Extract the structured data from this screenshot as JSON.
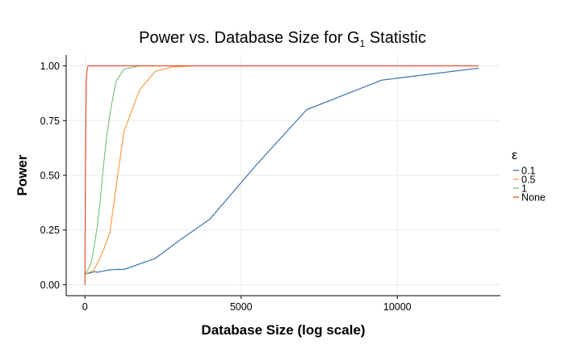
{
  "chart_data": {
    "type": "line",
    "title": {
      "prefix": "Power vs. Database Size for G",
      "subscript": "1",
      "suffix": " Statistic"
    },
    "xlabel": "Database Size (log scale)",
    "ylabel": "Power",
    "xlim": [
      -600,
      13300
    ],
    "ylim": [
      -0.05,
      1.05
    ],
    "x_ticks": [
      0,
      5000,
      10000
    ],
    "x_tick_labels": [
      "0",
      "5000",
      "10000"
    ],
    "y_ticks": [
      0,
      0.25,
      0.5,
      0.75,
      1.0
    ],
    "y_tick_labels": [
      "0.00",
      "0.25",
      "0.50",
      "0.75",
      "1.00"
    ],
    "grid": true,
    "legend": {
      "title": "ε",
      "position": "right"
    },
    "series": [
      {
        "name": "0.1",
        "color": "#3a6ea5",
        "x": [
          0,
          100,
          200,
          300,
          400,
          500,
          600,
          700,
          800,
          900,
          1000,
          1250,
          1750,
          2250,
          3000,
          4000,
          5500,
          7100,
          9500,
          12600
        ],
        "y": [
          0.05,
          0.052,
          0.055,
          0.06,
          0.057,
          0.06,
          0.063,
          0.066,
          0.068,
          0.069,
          0.07,
          0.07,
          0.095,
          0.12,
          0.2,
          0.3,
          0.55,
          0.8,
          0.935,
          0.99
        ]
      },
      {
        "name": "0.5",
        "color": "#f5a04a",
        "x": [
          0,
          100,
          200,
          300,
          400,
          500,
          600,
          700,
          800,
          1000,
          1250,
          1750,
          2250,
          2800,
          3500
        ],
        "y": [
          0.05,
          0.055,
          0.06,
          0.07,
          0.1,
          0.13,
          0.16,
          0.2,
          0.24,
          0.45,
          0.7,
          0.89,
          0.975,
          0.995,
          1.0
        ]
      },
      {
        "name": "1",
        "color": "#7cc47a",
        "x": [
          0,
          100,
          200,
          300,
          400,
          500,
          600,
          700,
          800,
          900,
          1000,
          1250,
          1750,
          2250
        ],
        "y": [
          0.05,
          0.07,
          0.1,
          0.18,
          0.27,
          0.4,
          0.55,
          0.68,
          0.78,
          0.86,
          0.93,
          0.985,
          1.0,
          1.0
        ]
      },
      {
        "name": "None",
        "color": "#e8502b",
        "x": [
          0,
          20,
          40,
          60,
          80,
          100,
          150,
          200,
          400,
          1000,
          5000,
          12600
        ],
        "y": [
          0.0,
          0.6,
          0.92,
          0.97,
          0.99,
          1.0,
          1.0,
          1.0,
          1.0,
          1.0,
          1.0,
          1.0
        ]
      }
    ]
  }
}
